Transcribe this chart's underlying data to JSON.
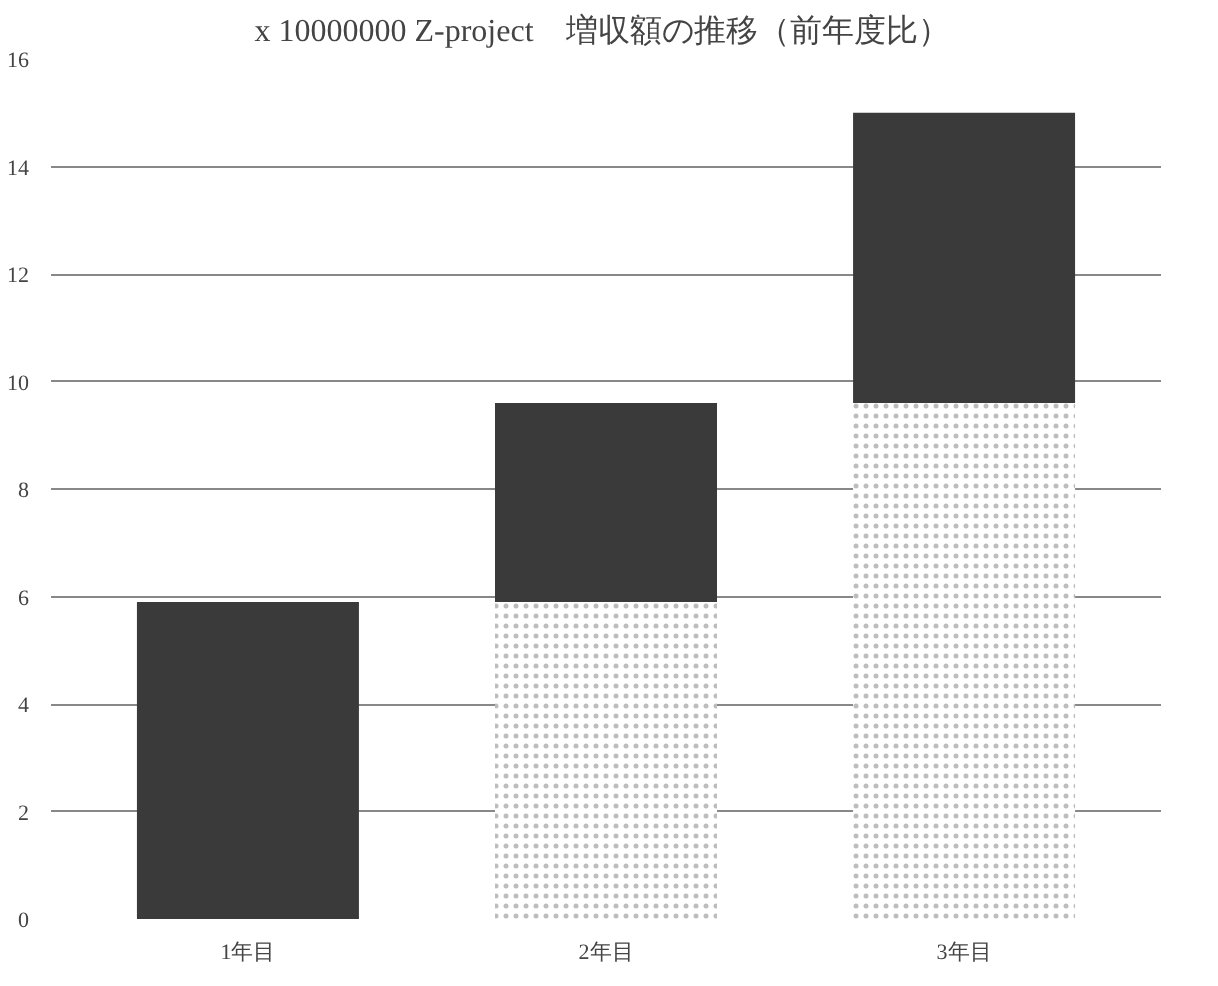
{
  "chart_data": {
    "type": "bar",
    "title": "Z-project　増収額の推移（前年度比）",
    "ylabel": "x 10000000",
    "categories": [
      "1年目",
      "2年目",
      "3年目"
    ],
    "stacked": true,
    "series": [
      {
        "color": "#bdbdbd",
        "values": [
          null,
          5.9,
          9.6
        ]
      },
      {
        "color": "#3a3a3a",
        "values": [
          5.9,
          3.7,
          5.4
        ]
      }
    ],
    "ylim": [
      0,
      16
    ],
    "yticks": [
      0,
      2,
      4,
      6,
      8,
      10,
      12,
      14,
      16
    ],
    "grid": "y"
  }
}
